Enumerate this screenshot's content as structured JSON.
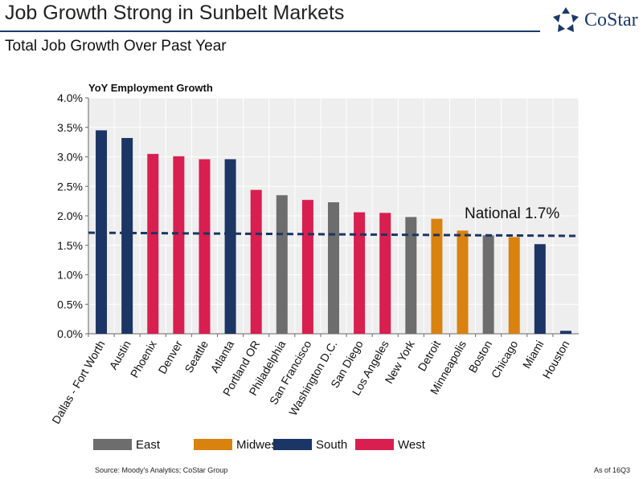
{
  "header": {
    "title": "Job Growth Strong in Sunbelt Markets",
    "subtitle": "Total Job Growth Over Past Year",
    "logo_text": "CoStar"
  },
  "footer": {
    "source": "Source: Moody's Analytics; CoStar Group",
    "as_of": "As of 16Q3"
  },
  "colors": {
    "East": "#6d6d6d",
    "Midwest": "#d9820f",
    "South": "#1b3564",
    "West": "#d81f4f",
    "plot_bg": "#eeeeee",
    "national_line": "#1b3564",
    "brand": "#1b3a6b"
  },
  "chart_data": {
    "type": "bar",
    "title": "YoY Employment Growth",
    "xlabel": "",
    "ylabel": "",
    "ylim": [
      0,
      4
    ],
    "yticks": [
      0,
      0.5,
      1,
      1.5,
      2,
      2.5,
      3,
      3.5,
      4
    ],
    "ytick_labels": [
      "0.0%",
      "0.5%",
      "1.0%",
      "1.5%",
      "2.0%",
      "2.5%",
      "3.0%",
      "3.5%",
      "4.0%"
    ],
    "grid": true,
    "categories": [
      "Dallas - Fort Worth",
      "Austin",
      "Phoenix",
      "Denver",
      "Seattle",
      "Atlanta",
      "Portland OR",
      "Philadelphia",
      "San Francisco",
      "Washington D.C.",
      "San Diego",
      "Los Angeles",
      "New York",
      "Detroit",
      "Minneapolis",
      "Boston",
      "Chicago",
      "Miami",
      "Houston"
    ],
    "values": [
      3.45,
      3.32,
      3.05,
      3.01,
      2.96,
      2.96,
      2.44,
      2.35,
      2.27,
      2.23,
      2.06,
      2.05,
      1.98,
      1.95,
      1.75,
      1.67,
      1.64,
      1.52,
      0.05
    ],
    "regions": [
      "South",
      "South",
      "West",
      "West",
      "West",
      "South",
      "West",
      "East",
      "West",
      "East",
      "West",
      "West",
      "East",
      "Midwest",
      "Midwest",
      "East",
      "Midwest",
      "South",
      "South"
    ],
    "reference_line": {
      "label": "National 1.7%",
      "value": 1.7
    },
    "legend": {
      "placement": "bottom",
      "entries": [
        "East",
        "Midwest",
        "South",
        "West"
      ]
    }
  }
}
